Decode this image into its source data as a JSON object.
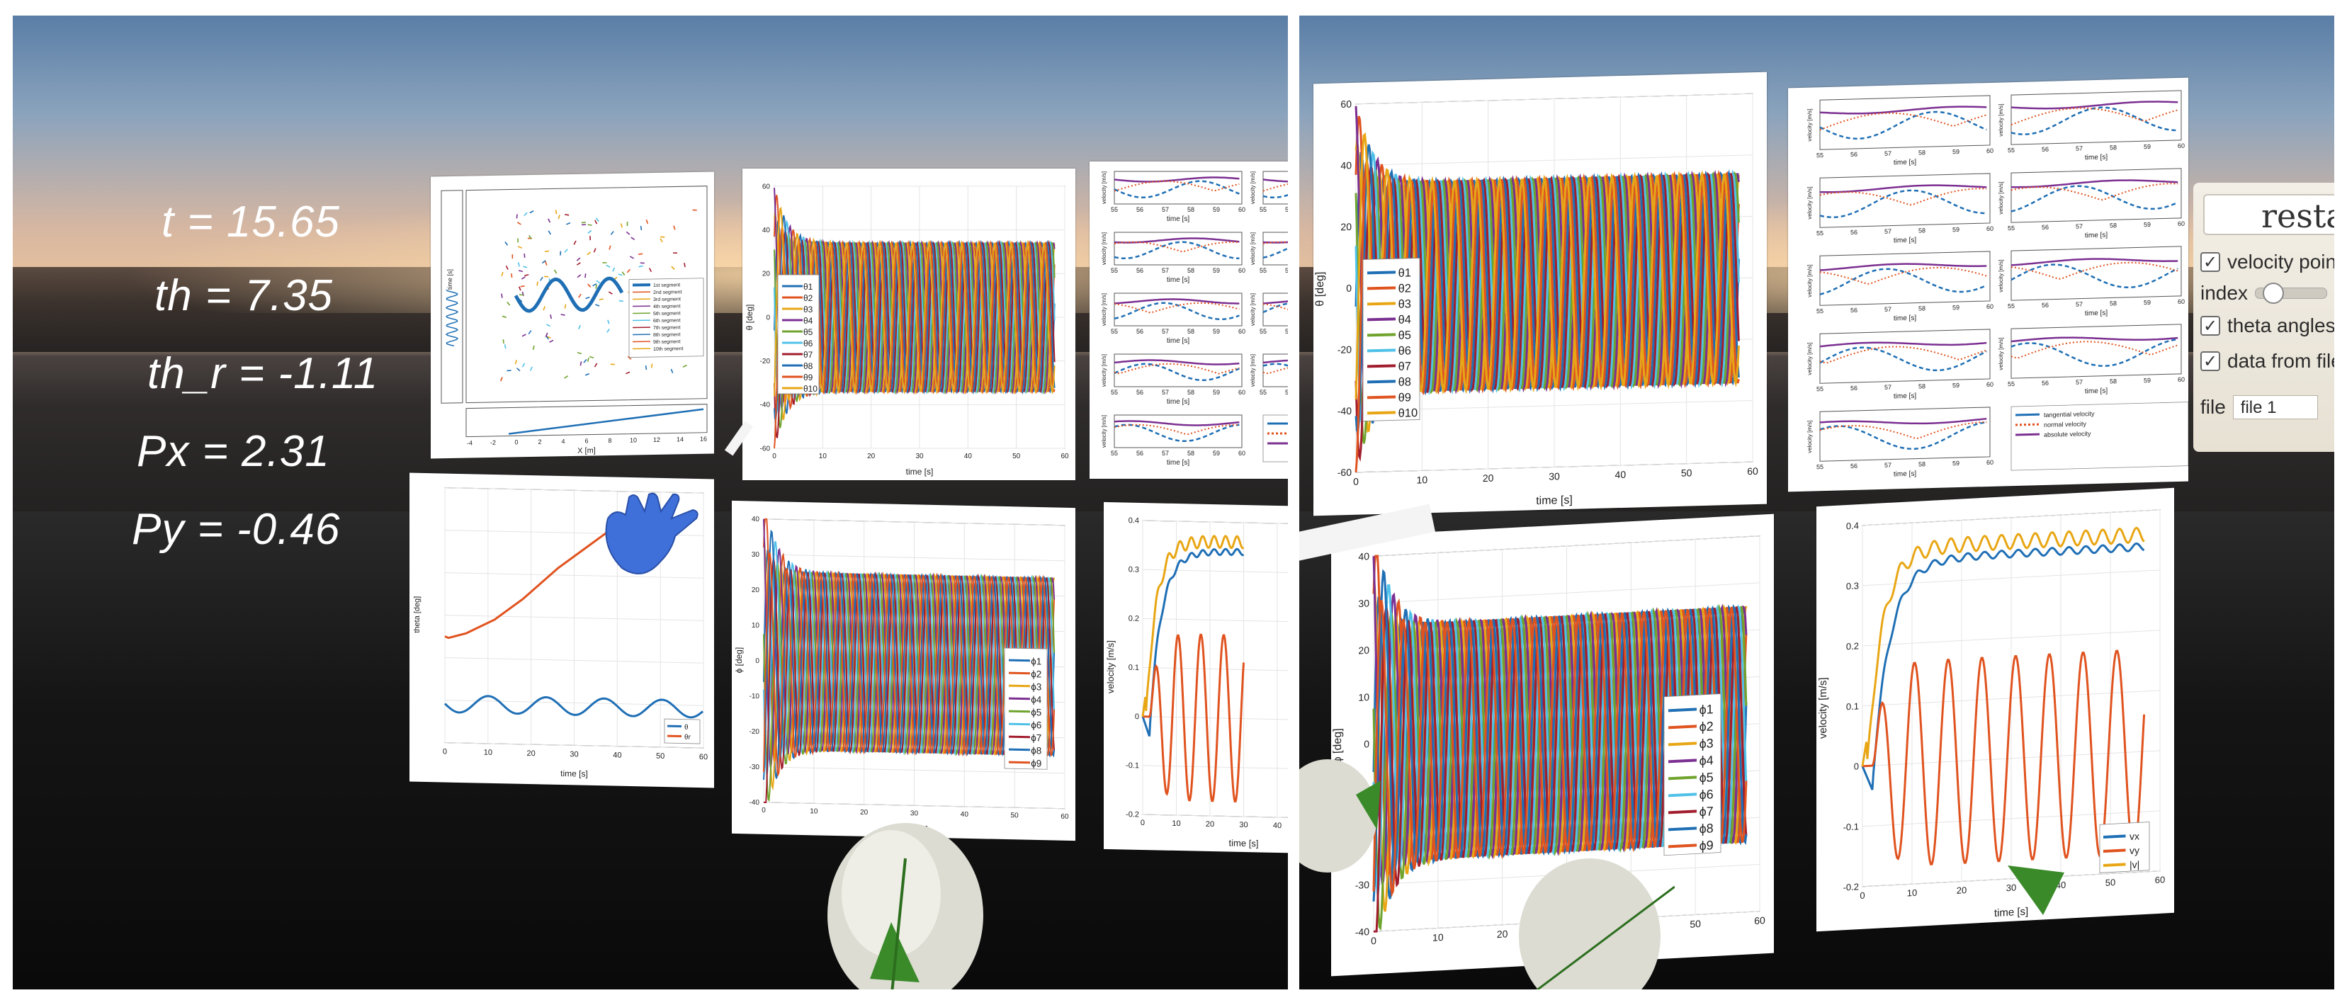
{
  "colors": {
    "series": [
      "#1f6fb5",
      "#e0531f",
      "#e8a614",
      "#7b2f91",
      "#6fa32d",
      "#4fc1e8",
      "#a11d2d"
    ],
    "tangential": "#1f6fb5",
    "normal": "#e0531f",
    "absolute": "#7b2f91"
  },
  "overlay": {
    "t": "t = 15.65",
    "th": "th = 7.35",
    "th_r": "th_r = -1.11",
    "px": "Px = 2.31",
    "py": "Py = -0.46"
  },
  "ui_panel": {
    "restart_label": "resta",
    "velocity_points_label": "velocity point",
    "index_label": "index",
    "theta_angles_label": "theta angles",
    "data_from_file_label": "data from file",
    "file_label": "file",
    "file_value": "file 1"
  },
  "charts": {
    "trajectory": {
      "xlabel": "X [m]",
      "ylabel": "Y [m]",
      "x_ticks": [
        "-4",
        "-2",
        "0",
        "2",
        "4",
        "6",
        "8",
        "10",
        "12",
        "14",
        "16"
      ],
      "y_ticks": [
        "0",
        "-0.5",
        "-1",
        "-1.5"
      ],
      "side_xlabel": "time [s]",
      "legend": [
        "1st segment",
        "2nd segment",
        "3rd segment",
        "4th segment",
        "5th segment",
        "6th segment",
        "7th segment",
        "8th segment",
        "9th segment",
        "10th segment"
      ]
    },
    "theta": {
      "ylabel": "θ [deg]",
      "xlabel": "time [s]",
      "x_ticks": [
        "0",
        "10",
        "20",
        "30",
        "40",
        "50",
        "60"
      ],
      "y_ticks": [
        "60",
        "40",
        "20",
        "0",
        "-20",
        "-40",
        "-60"
      ],
      "legend": [
        "θ1",
        "θ2",
        "θ3",
        "θ4",
        "θ5",
        "θ6",
        "θ7",
        "θ8",
        "θ9",
        "θ10"
      ]
    },
    "phi": {
      "ylabel": "ϕ [deg]",
      "xlabel": "time [s]",
      "x_ticks": [
        "0",
        "10",
        "20",
        "30",
        "40",
        "50",
        "60"
      ],
      "y_ticks": [
        "40",
        "30",
        "20",
        "10",
        "0",
        "-10",
        "-20",
        "-30",
        "-40"
      ],
      "legend": [
        "ϕ1",
        "ϕ2",
        "ϕ3",
        "ϕ4",
        "ϕ5",
        "ϕ6",
        "ϕ7",
        "ϕ8",
        "ϕ9"
      ]
    },
    "head_angle": {
      "ylabel": "theta [deg]",
      "xlabel": "time [s]",
      "x_ticks": [
        "0",
        "10",
        "20",
        "30",
        "40",
        "50",
        "60"
      ],
      "legend": [
        "θ",
        "θr"
      ]
    },
    "velocity_grid": {
      "ylabel": "velocity [m/s]",
      "xlabel": "time [s]",
      "x_ticks": [
        "55",
        "56",
        "57",
        "58",
        "59",
        "60"
      ],
      "legend": [
        "tangential velocity",
        "normal velocity",
        "absolute velocity"
      ]
    },
    "velocity": {
      "ylabel": "velocity [m/s]",
      "xlabel": "time [s]",
      "x_ticks": [
        "0",
        "10",
        "20",
        "30",
        "40",
        "50",
        "60"
      ],
      "y_ticks": [
        "0.4",
        "0.3",
        "0.2",
        "0.1",
        "0",
        "-0.1",
        "-0.2"
      ],
      "legend": [
        "vx",
        "vy",
        "|v|"
      ]
    }
  },
  "chart_data": [
    {
      "type": "line",
      "title": "",
      "xlabel": "time [s]",
      "ylabel": "θ [deg]",
      "xlim": [
        0,
        60
      ],
      "ylim": [
        -60,
        60
      ],
      "series": [
        {
          "name": "θ1",
          "amplitude": 38,
          "offset": 0,
          "phase": 0.0
        },
        {
          "name": "θ2",
          "amplitude": 38,
          "offset": 0,
          "phase": 0.6
        },
        {
          "name": "θ3",
          "amplitude": 38,
          "offset": 0,
          "phase": 1.2
        },
        {
          "name": "θ4",
          "amplitude": 38,
          "offset": 0,
          "phase": 1.8
        },
        {
          "name": "θ5",
          "amplitude": 38,
          "offset": 0,
          "phase": 2.4
        },
        {
          "name": "θ6",
          "amplitude": 38,
          "offset": 0,
          "phase": 3.0
        },
        {
          "name": "θ7",
          "amplitude": 38,
          "offset": 0,
          "phase": 3.6
        },
        {
          "name": "θ8",
          "amplitude": 38,
          "offset": 0,
          "phase": 4.2
        },
        {
          "name": "θ9",
          "amplitude": 38,
          "offset": 0,
          "phase": 4.8
        },
        {
          "name": "θ10",
          "amplitude": 38,
          "offset": 0,
          "phase": 5.4
        }
      ]
    },
    {
      "type": "line",
      "title": "",
      "xlabel": "time [s]",
      "ylabel": "ϕ [deg]",
      "xlim": [
        0,
        60
      ],
      "ylim": [
        -40,
        40
      ],
      "series": [
        {
          "name": "ϕ1",
          "amplitude": 28,
          "offset": 0,
          "phase": 0.0
        },
        {
          "name": "ϕ2",
          "amplitude": 28,
          "offset": 0,
          "phase": 0.7
        },
        {
          "name": "ϕ3",
          "amplitude": 28,
          "offset": 0,
          "phase": 1.4
        },
        {
          "name": "ϕ4",
          "amplitude": 28,
          "offset": 0,
          "phase": 2.1
        },
        {
          "name": "ϕ5",
          "amplitude": 28,
          "offset": 0,
          "phase": 2.8
        },
        {
          "name": "ϕ6",
          "amplitude": 28,
          "offset": 0,
          "phase": 3.5
        },
        {
          "name": "ϕ7",
          "amplitude": 28,
          "offset": 0,
          "phase": 4.2
        },
        {
          "name": "ϕ8",
          "amplitude": 28,
          "offset": 0,
          "phase": 4.9
        },
        {
          "name": "ϕ9",
          "amplitude": 28,
          "offset": 0,
          "phase": 5.6
        }
      ]
    },
    {
      "type": "line",
      "title": "",
      "xlabel": "time [s]",
      "ylabel": "velocity [m/s]",
      "xlim": [
        0,
        60
      ],
      "ylim": [
        -0.2,
        0.4
      ],
      "series": [
        {
          "name": "vx",
          "values_x": [
            0,
            3,
            6,
            10,
            15,
            20,
            30,
            40,
            50,
            57
          ],
          "values_y": [
            0,
            -0.03,
            0.15,
            0.24,
            0.29,
            0.3,
            0.32,
            0.33,
            0.34,
            0.34
          ]
        },
        {
          "name": "vy",
          "values_x": [
            0,
            3,
            6,
            10,
            15,
            20,
            30,
            40,
            50,
            57
          ],
          "values_y": [
            0,
            -0.02,
            -0.15,
            0.16,
            -0.17,
            0.16,
            -0.17,
            0.17,
            -0.17,
            0.0
          ]
        },
        {
          "name": "|v|",
          "values_x": [
            0,
            3,
            6,
            10,
            15,
            20,
            30,
            40,
            50,
            57
          ],
          "values_y": [
            0,
            0.12,
            0.25,
            0.29,
            0.31,
            0.32,
            0.33,
            0.35,
            0.36,
            0.35
          ]
        }
      ]
    }
  ]
}
